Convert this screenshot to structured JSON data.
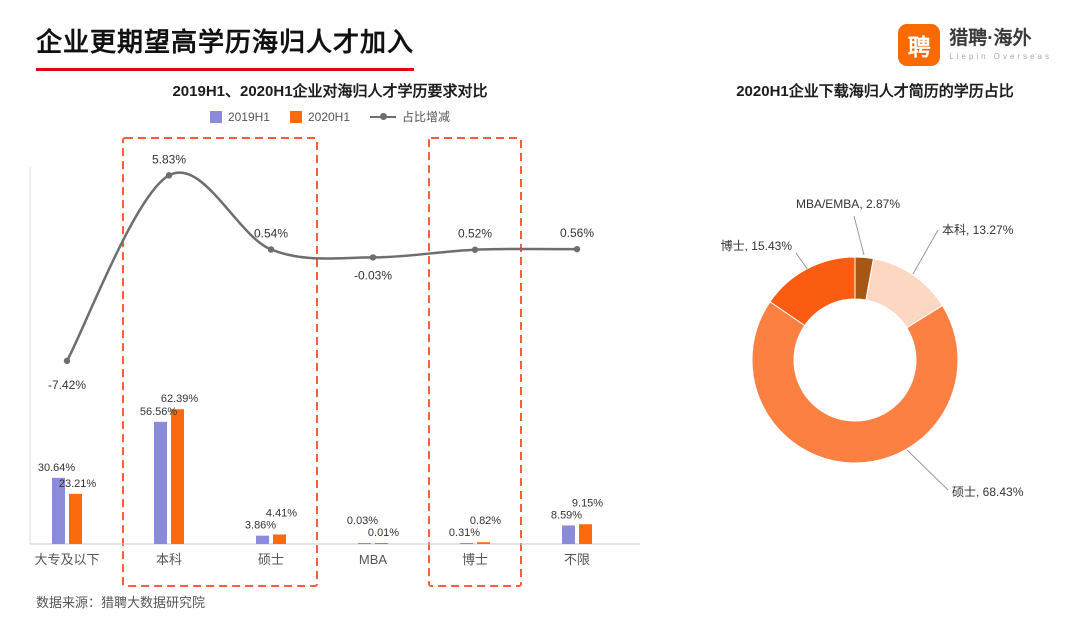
{
  "page": {
    "title": "企业更期望高学历海归人才加入",
    "source": "数据来源：猎聘大数据研究院"
  },
  "logo": {
    "glyph": "聘",
    "brand": "猎聘·海外",
    "tagline": "Liepin Overseas",
    "color": "#fb6a00"
  },
  "colors": {
    "accent_red": "#e60012",
    "axis_gray": "#c8c8c8",
    "label_dark": "#333333",
    "leader_gray": "#999999"
  },
  "chart_data": [
    {
      "type": "bar",
      "title": "2019H1、2020H1企业对海归人才学历要求对比",
      "categories": [
        "大专及以下",
        "本科",
        "硕士",
        "MBA",
        "博士",
        "不限"
      ],
      "series": [
        {
          "name": "2019H1",
          "kind": "bar",
          "color": "#8b8bd9",
          "values": [
            30.64,
            56.56,
            3.86,
            0.03,
            0.31,
            8.59
          ]
        },
        {
          "name": "2020H1",
          "kind": "bar",
          "color": "#fb6a0f",
          "values": [
            23.21,
            62.39,
            4.41,
            0.01,
            0.82,
            9.15
          ]
        },
        {
          "name": "占比增减",
          "kind": "line",
          "color": "#6e6e6e",
          "values": [
            -7.42,
            5.83,
            0.54,
            -0.03,
            0.52,
            0.56
          ]
        }
      ],
      "value_suffix": "%",
      "ylim_bars": [
        0,
        70
      ],
      "ylim_line": [
        -10,
        8
      ],
      "grid": false,
      "legend_position": "top",
      "highlight_groups": [
        [
          "本科",
          "硕士"
        ],
        [
          "博士"
        ]
      ],
      "highlight_color": "#ff5c38"
    },
    {
      "type": "pie",
      "title": "2020H1企业下载海归人才简历的学历占比",
      "donut": true,
      "value_suffix": "%",
      "slices": [
        {
          "label": "MBA/EMBA",
          "value": 2.87,
          "color": "#a85613"
        },
        {
          "label": "本科",
          "value": 13.27,
          "color": "#fcd7c2"
        },
        {
          "label": "硕士",
          "value": 68.43,
          "color": "#fd8043"
        },
        {
          "label": "博士",
          "value": 15.43,
          "color": "#fa5d11"
        }
      ]
    }
  ]
}
